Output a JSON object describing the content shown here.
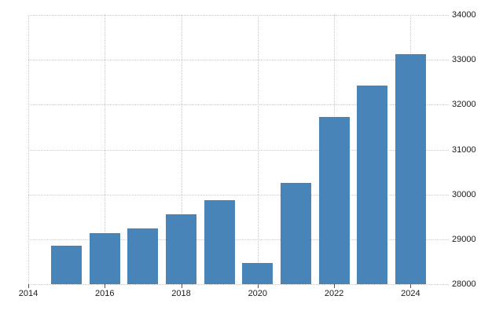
{
  "chart_data": {
    "type": "bar",
    "x": [
      2015,
      2016,
      2017,
      2018,
      2019,
      2020,
      2021,
      2022,
      2023,
      2024
    ],
    "values": [
      28860,
      29130,
      29250,
      29550,
      29880,
      28470,
      30250,
      31730,
      32430,
      33130
    ],
    "xlim": [
      2014,
      2025
    ],
    "ylim": [
      28000,
      34000
    ],
    "x_ticks": [
      2014,
      2016,
      2018,
      2020,
      2022,
      2024
    ],
    "x_tick_labels": [
      "2014",
      "2016",
      "2018",
      "2020",
      "2022",
      "2024"
    ],
    "y_ticks": [
      28000,
      29000,
      30000,
      31000,
      32000,
      33000,
      34000
    ],
    "y_tick_labels": [
      "28000",
      "29000",
      "30000",
      "31000",
      "32000",
      "33000",
      "34000"
    ],
    "y_axis_side": "right",
    "legend": "none",
    "grid": {
      "horizontal": true,
      "vertical": true,
      "style": "dotted"
    },
    "colors": {
      "bar": "#4884b8",
      "grid": "#c9c9c9",
      "tick": "#555555",
      "label": "#1a1a1a",
      "background": "#ffffff"
    }
  }
}
